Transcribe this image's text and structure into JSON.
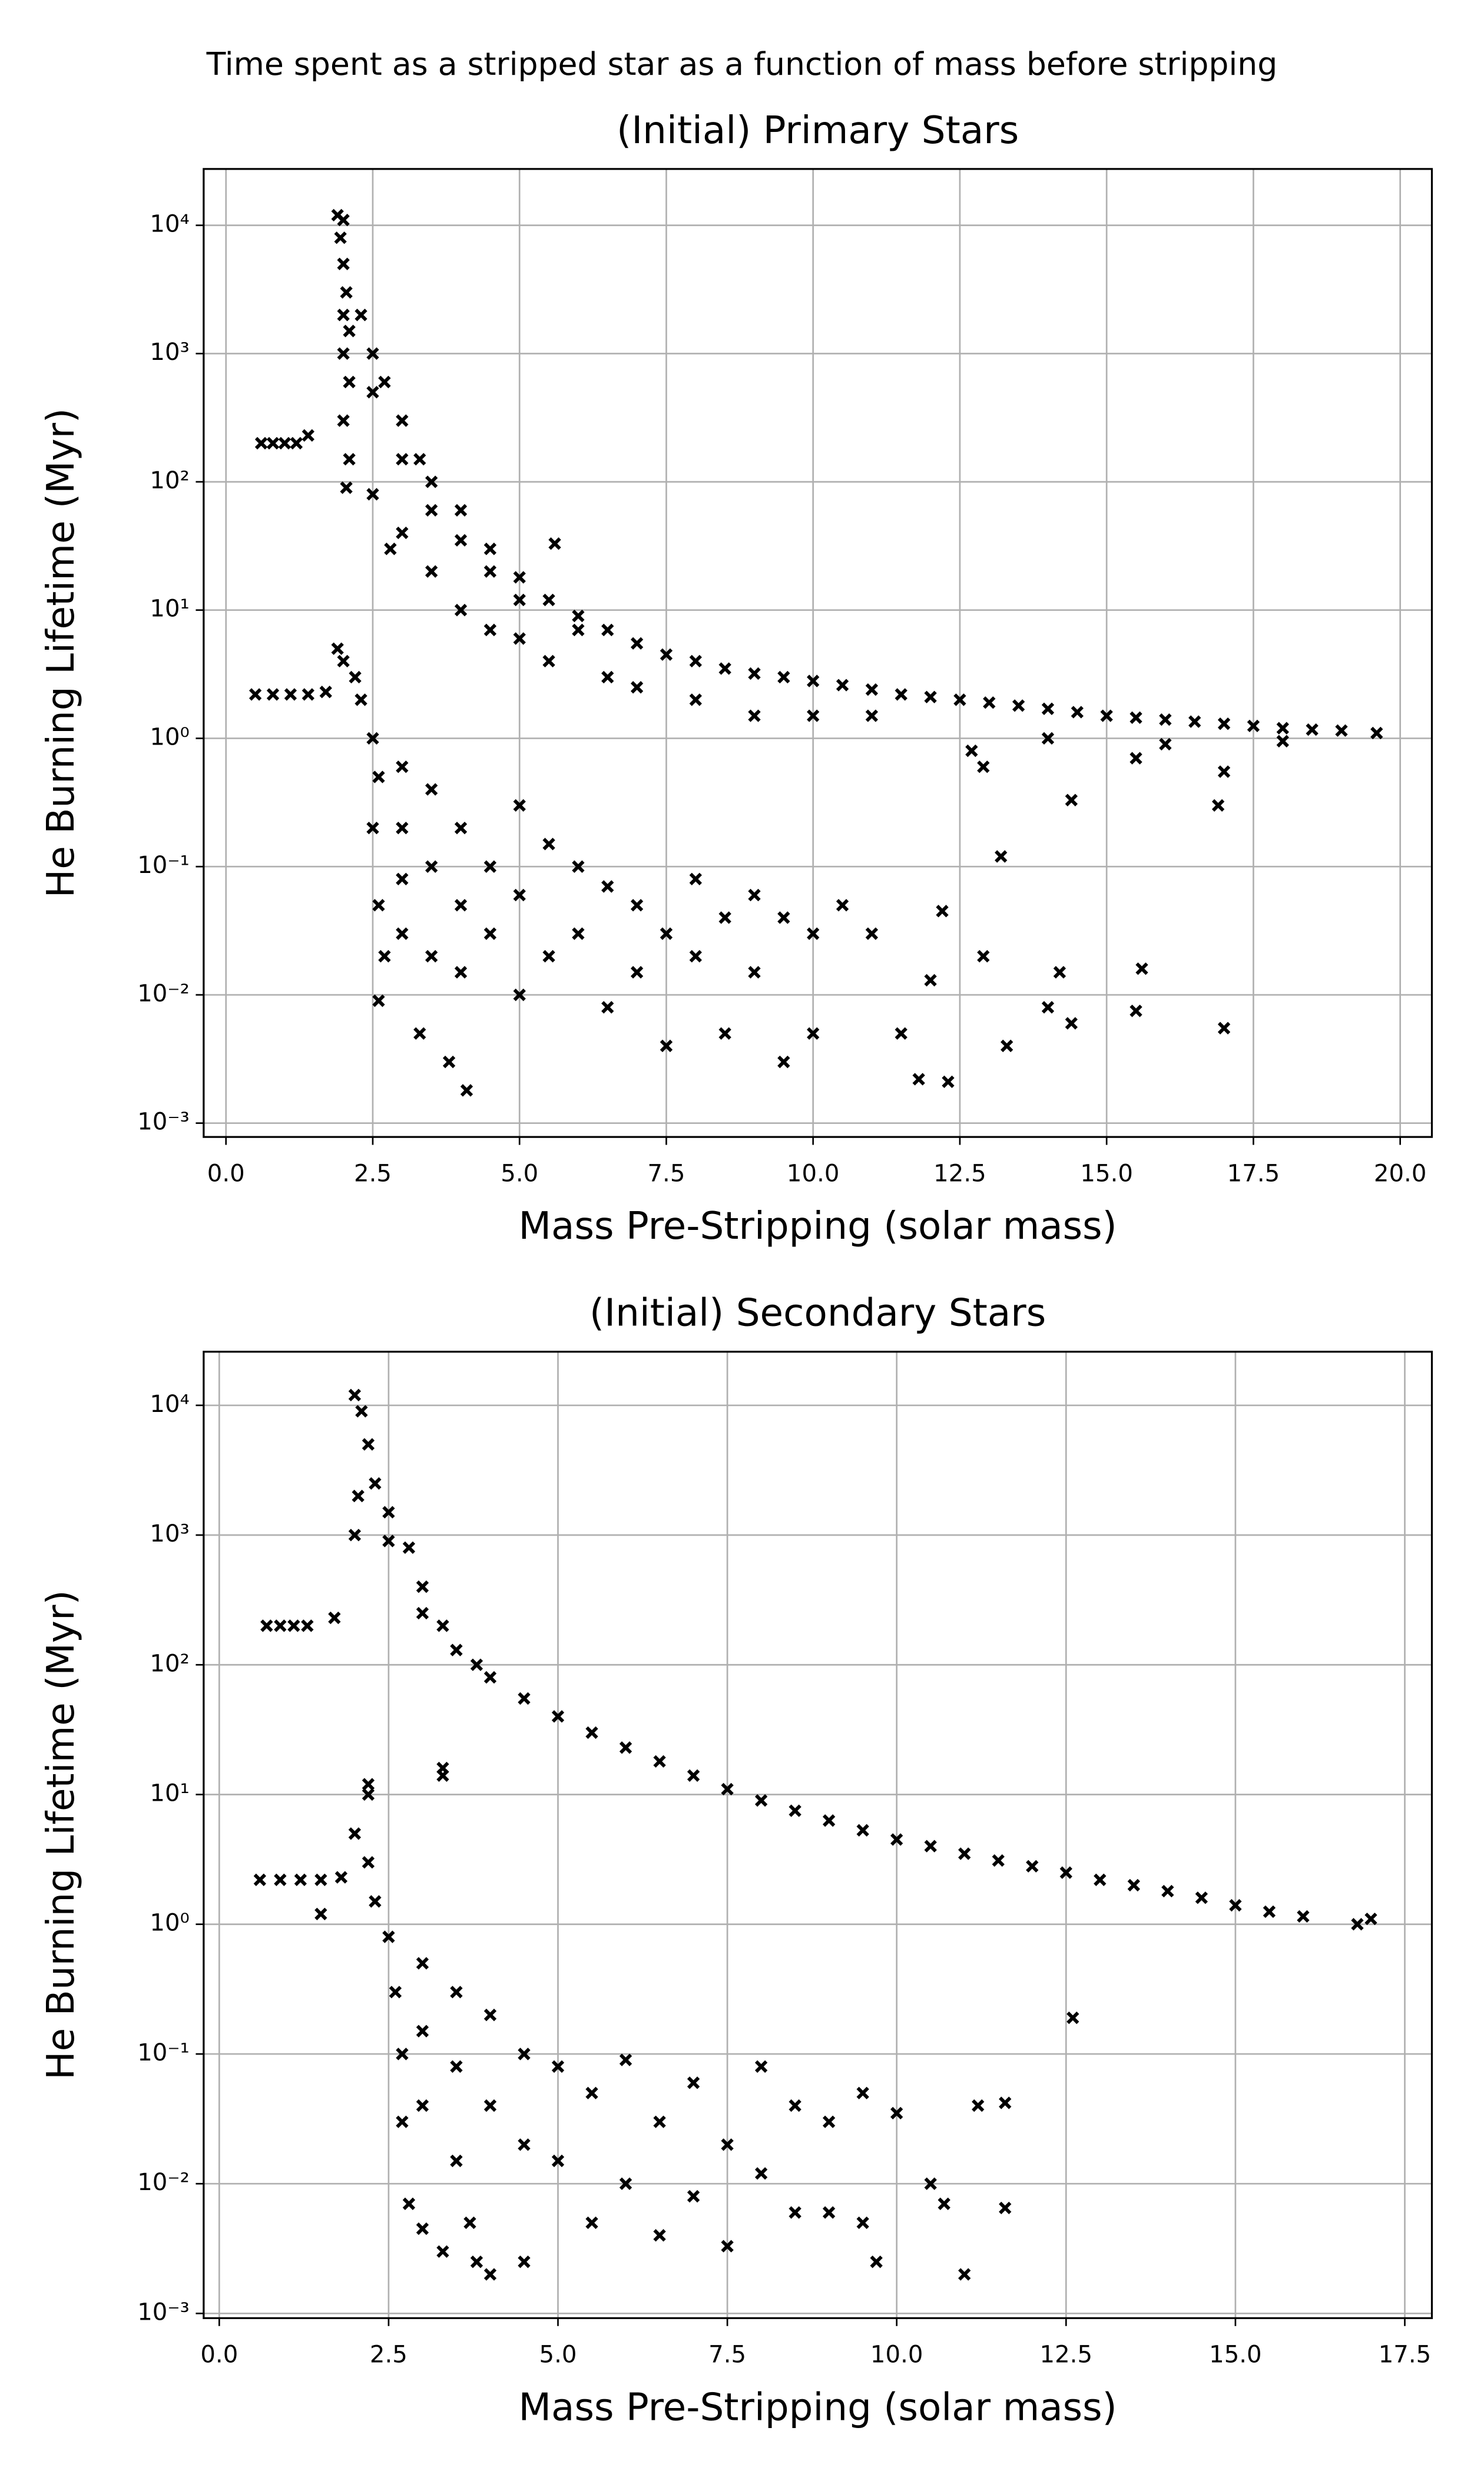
{
  "title": "Time spent as a stripped star as a function of mass before stripping",
  "chart_data": [
    {
      "type": "scatter",
      "title": "(Initial) Primary Stars",
      "x_label": "Mass Pre-Stripping (solar mass)",
      "y_label": "He Burning Lifetime (Myr)",
      "color": "#000000",
      "log_y": true,
      "grid": true,
      "xlim": [
        -0.38,
        20.54
      ],
      "ylim": [
        0.00078,
        27500
      ],
      "xticks": [
        {
          "value": 0,
          "label": "0.0"
        },
        2.5,
        {
          "value": 5,
          "label": "5.0"
        },
        7.5,
        {
          "value": 10,
          "label": "10.0"
        },
        12.5,
        {
          "value": 15,
          "label": "15.0"
        },
        17.5,
        {
          "value": 20,
          "label": "20.0"
        }
      ],
      "yticks": [
        {
          "value": 0.001,
          "label": "10⁻³"
        },
        {
          "value": 0.01,
          "label": "10⁻²"
        },
        {
          "value": 0.1,
          "label": "10⁻¹"
        },
        {
          "value": 1,
          "label": "10⁰"
        },
        {
          "value": 10,
          "label": "10¹"
        },
        {
          "value": 100,
          "label": "10²"
        },
        {
          "value": 1000,
          "label": "10³"
        },
        {
          "value": 10000,
          "label": "10⁴"
        }
      ],
      "x": [
        0.6,
        0.8,
        1.0,
        1.2,
        1.4,
        1.9,
        2.0,
        1.95,
        2.0,
        2.05,
        2.0,
        2.1,
        2.0,
        2.1,
        2.0,
        2.1,
        2.05,
        2.3,
        2.5,
        2.5,
        2.7,
        3.0,
        3.0,
        3.3,
        3.5,
        3.5,
        4.0,
        4.0,
        4.5,
        4.5,
        5.0,
        5.0,
        5.5,
        6.0,
        6.0,
        6.5,
        7.0,
        7.5,
        8.0,
        8.5,
        9.0,
        9.5,
        10,
        10.5,
        11,
        11.5,
        12,
        12.5,
        13,
        13.5,
        14,
        14.5,
        15,
        15.5,
        16,
        16.5,
        17,
        17.5,
        18,
        18.5,
        19,
        19.6,
        2.5,
        3.0,
        2.8,
        3.5,
        4.0,
        4.5,
        5.0,
        5.5,
        5.6,
        6.5,
        7.0,
        8.0,
        9.0,
        10,
        11,
        12.7,
        12.9,
        13.2,
        14.4,
        15.5,
        17,
        16.9,
        14,
        16,
        18,
        0.5,
        0.8,
        1.1,
        1.4,
        1.7,
        1.9,
        2.0,
        2.2,
        2.3,
        2.5,
        2.6,
        2.5,
        2.6,
        2.7,
        2.6,
        3.0,
        3.0,
        3.0,
        3.0,
        3.3,
        3.5,
        3.5,
        3.5,
        3.8,
        4.1,
        4.0,
        4.0,
        4.0,
        4.5,
        4.5,
        5.0,
        5.0,
        5.0,
        5.5,
        5.5,
        6.0,
        6.0,
        6.5,
        6.5,
        7.0,
        7.0,
        7.5,
        7.5,
        8.0,
        8.0,
        8.5,
        8.5,
        9.0,
        9.0,
        9.5,
        9.5,
        10.0,
        10,
        10.5,
        11,
        11.5,
        11.8,
        12.3,
        12.2,
        12,
        12.9,
        13.3,
        14,
        14.2,
        14.4,
        15.6,
        15.5,
        17.0
      ],
      "values": [
        200,
        200,
        200,
        200,
        230,
        12000,
        11000,
        8000,
        5000,
        3000,
        2000,
        1500,
        1000,
        600,
        300,
        150,
        90,
        2000,
        1000,
        500,
        600,
        300,
        150,
        150,
        100,
        60,
        60,
        35,
        30,
        20,
        18,
        12,
        12,
        9,
        7,
        7,
        5.5,
        4.5,
        4,
        3.5,
        3.2,
        3,
        2.8,
        2.6,
        2.4,
        2.2,
        2.1,
        2,
        1.9,
        1.8,
        1.7,
        1.6,
        1.5,
        1.45,
        1.4,
        1.35,
        1.3,
        1.25,
        1.2,
        1.17,
        1.15,
        1.1,
        80,
        40,
        30,
        20,
        10,
        7,
        6,
        4,
        33,
        3,
        2.5,
        2,
        1.5,
        1.5,
        1.5,
        0.8,
        0.6,
        0.12,
        0.33,
        0.7,
        0.55,
        0.3,
        1.0,
        0.9,
        0.95,
        2.2,
        2.2,
        2.2,
        2.2,
        2.3,
        5,
        4,
        3,
        2,
        1.0,
        0.5,
        0.2,
        0.05,
        0.02,
        0.009,
        0.6,
        0.2,
        0.08,
        0.03,
        0.005,
        0.4,
        0.1,
        0.02,
        0.003,
        0.0018,
        0.2,
        0.05,
        0.015,
        0.1,
        0.03,
        0.3,
        0.06,
        0.01,
        0.15,
        0.02,
        0.1,
        0.03,
        0.07,
        0.008,
        0.05,
        0.015,
        0.03,
        0.004,
        0.08,
        0.02,
        0.04,
        0.005,
        0.06,
        0.015,
        0.003,
        0.04,
        0.03,
        0.005,
        0.05,
        0.03,
        0.005,
        0.0022,
        0.0021,
        0.045,
        0.013,
        0.02,
        0.004,
        0.008,
        0.015,
        0.006,
        0.016,
        0.0075,
        0.0055
      ]
    },
    {
      "type": "scatter",
      "title": "(Initial) Secondary Stars",
      "x_label": "Mass Pre-Stripping (solar mass)",
      "y_label": "He Burning Lifetime (Myr)",
      "color": "#000000",
      "log_y": true,
      "grid": true,
      "xlim": [
        -0.23,
        17.9
      ],
      "ylim": [
        0.00092,
        25900
      ],
      "xticks": [
        {
          "value": 0,
          "label": "0.0"
        },
        2.5,
        {
          "value": 5,
          "label": "5.0"
        },
        7.5,
        {
          "value": 10,
          "label": "10.0"
        },
        12.5,
        {
          "value": 15,
          "label": "15.0"
        },
        17.5
      ],
      "yticks": [
        {
          "value": 0.001,
          "label": "10⁻³"
        },
        {
          "value": 0.01,
          "label": "10⁻²"
        },
        {
          "value": 0.1,
          "label": "10⁻¹"
        },
        {
          "value": 1,
          "label": "10⁰"
        },
        {
          "value": 10,
          "label": "10¹"
        },
        {
          "value": 100,
          "label": "10²"
        },
        {
          "value": 1000,
          "label": "10³"
        },
        {
          "value": 10000,
          "label": "10⁴"
        }
      ],
      "x": [
        0.7,
        0.9,
        1.1,
        1.3,
        1.7,
        2.0,
        2.1,
        2.2,
        2.05,
        2.0,
        2.3,
        2.5,
        2.5,
        2.8,
        3.0,
        3.0,
        3.3,
        3.5,
        3.8,
        4.0,
        4.5,
        5.0,
        5.5,
        6.0,
        6.5,
        7.0,
        7.5,
        8.0,
        8.5,
        9,
        9.5,
        10,
        10.5,
        11,
        11.5,
        12,
        12.5,
        13,
        13.5,
        14,
        14.5,
        15,
        15.5,
        16,
        16.8,
        17,
        2.2,
        2.2,
        3.3,
        3.3,
        1.5,
        12.6,
        0.6,
        0.9,
        1.2,
        1.5,
        1.8,
        2.0,
        2.2,
        2.3,
        2.5,
        2.6,
        2.7,
        2.7,
        2.8,
        3.0,
        3.0,
        3.0,
        3.0,
        3.3,
        3.5,
        3.5,
        3.5,
        3.7,
        3.8,
        4.0,
        4.0,
        4.0,
        4.5,
        4.5,
        4.5,
        5.0,
        5.0,
        5.5,
        5.5,
        6.0,
        6.0,
        6.5,
        6.5,
        7.0,
        7.0,
        7.5,
        7.5,
        8.0,
        8.0,
        8.5,
        8.5,
        9.0,
        9.0,
        9.5,
        9.5,
        9.7,
        10,
        10.5,
        10.7,
        11,
        11.2,
        11.6,
        11.6
      ],
      "values": [
        200,
        200,
        200,
        200,
        230,
        12000,
        9000,
        5000,
        2000,
        1000,
        2500,
        1500,
        900,
        800,
        400,
        250,
        200,
        130,
        100,
        80,
        55,
        40,
        30,
        23,
        18,
        14,
        11,
        9,
        7.5,
        6.3,
        5.3,
        4.5,
        4,
        3.5,
        3.1,
        2.8,
        2.5,
        2.2,
        2,
        1.8,
        1.6,
        1.4,
        1.25,
        1.15,
        1.0,
        1.1,
        12,
        10,
        16,
        14,
        1.2,
        0.19,
        2.2,
        2.2,
        2.2,
        2.2,
        2.3,
        5,
        3,
        1.5,
        0.8,
        0.3,
        0.1,
        0.03,
        0.007,
        0.5,
        0.15,
        0.04,
        0.0045,
        0.003,
        0.3,
        0.08,
        0.015,
        0.005,
        0.0025,
        0.2,
        0.04,
        0.002,
        0.1,
        0.02,
        0.0025,
        0.08,
        0.015,
        0.05,
        0.005,
        0.09,
        0.01,
        0.03,
        0.004,
        0.06,
        0.008,
        0.02,
        0.0033,
        0.08,
        0.012,
        0.04,
        0.006,
        0.03,
        0.006,
        0.05,
        0.005,
        0.0025,
        0.035,
        0.01,
        0.007,
        0.002,
        0.04,
        0.0065,
        0.042
      ]
    }
  ]
}
